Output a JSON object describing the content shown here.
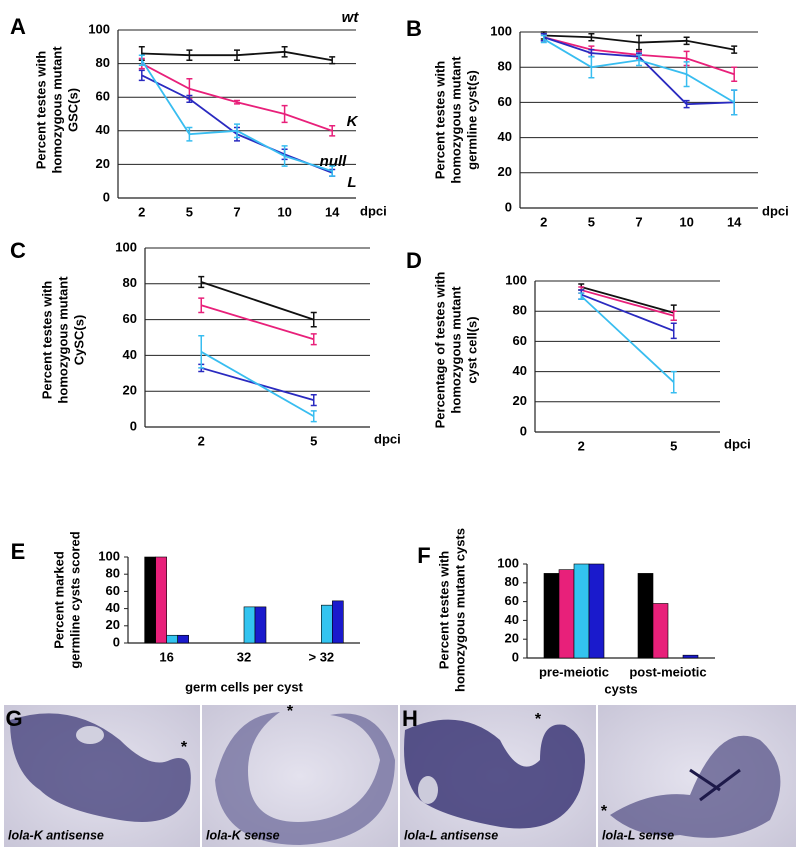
{
  "chart_data": [
    {
      "type": "line",
      "panel": "A",
      "ylabel": [
        "Percent testes with",
        "homozygous mutant",
        "GSC(s)"
      ],
      "xlabel": "dpci",
      "categories": [
        "2",
        "5",
        "7",
        "10",
        "14"
      ],
      "ylim": [
        0,
        100
      ],
      "yticks": [
        0,
        20,
        40,
        60,
        80,
        100
      ],
      "grid": true,
      "series": [
        {
          "name": "wt",
          "color": "#111111",
          "values": [
            86,
            85,
            85,
            87,
            82
          ],
          "errors": [
            4,
            3,
            3,
            3,
            2
          ]
        },
        {
          "name": "K",
          "color": "#e8207a",
          "values": [
            80,
            65,
            57,
            50,
            40
          ],
          "errors": [
            3,
            6,
            1,
            5,
            3
          ]
        },
        {
          "name": "null",
          "color": "#2a2ac0",
          "values": [
            73,
            59,
            38,
            26,
            15
          ],
          "errors": [
            3,
            2,
            4,
            3,
            2
          ]
        },
        {
          "name": "L",
          "color": "#38bdf0",
          "values": [
            82,
            38,
            40,
            25,
            16
          ],
          "errors": [
            3,
            4,
            4,
            6,
            3
          ]
        }
      ]
    },
    {
      "type": "line",
      "panel": "B",
      "ylabel": [
        "Percent testes with",
        "homozygous mutant",
        "germline cyst(s)"
      ],
      "xlabel": "dpci",
      "categories": [
        "2",
        "5",
        "7",
        "10",
        "14"
      ],
      "ylim": [
        0,
        100
      ],
      "yticks": [
        0,
        20,
        40,
        60,
        80,
        100
      ],
      "grid": true,
      "series": [
        {
          "color": "#111111",
          "values": [
            98,
            97,
            94,
            95,
            90
          ],
          "errors": [
            2,
            2,
            4,
            2,
            2
          ]
        },
        {
          "color": "#e8207a",
          "values": [
            97,
            90,
            87,
            85,
            76
          ],
          "errors": [
            2,
            2,
            2,
            4,
            4
          ]
        },
        {
          "color": "#2a2ac0",
          "values": [
            97,
            88,
            86,
            59,
            60
          ],
          "errors": [
            2,
            2,
            2,
            2,
            7
          ]
        },
        {
          "color": "#38bdf0",
          "values": [
            96,
            80,
            84,
            76,
            60
          ],
          "errors": [
            2,
            6,
            3,
            7,
            7
          ]
        }
      ]
    },
    {
      "type": "line",
      "panel": "C",
      "ylabel": [
        "Percent testes with",
        "homozygous mutant",
        "CySC(s)"
      ],
      "xlabel": "dpci",
      "categories": [
        "2",
        "5"
      ],
      "ylim": [
        0,
        100
      ],
      "yticks": [
        0,
        20,
        40,
        60,
        80,
        100
      ],
      "grid": true,
      "series": [
        {
          "color": "#111111",
          "values": [
            81,
            60
          ],
          "errors": [
            3,
            4
          ]
        },
        {
          "color": "#e8207a",
          "values": [
            68,
            49
          ],
          "errors": [
            4,
            3
          ]
        },
        {
          "color": "#2a2ac0",
          "values": [
            33,
            15
          ],
          "errors": [
            2,
            3
          ]
        },
        {
          "color": "#38bdf0",
          "values": [
            42,
            6
          ],
          "errors": [
            9,
            3
          ]
        }
      ]
    },
    {
      "type": "line",
      "panel": "D",
      "ylabel": [
        "Percentage of testes with",
        "homozygous mutant",
        "cyst cell(s)"
      ],
      "xlabel": "dpci",
      "categories": [
        "2",
        "5"
      ],
      "ylim": [
        0,
        100
      ],
      "yticks": [
        0,
        20,
        40,
        60,
        80,
        100
      ],
      "grid": true,
      "series": [
        {
          "color": "#111111",
          "values": [
            96,
            79
          ],
          "errors": [
            2,
            5
          ]
        },
        {
          "color": "#e8207a",
          "values": [
            94,
            77
          ],
          "errors": [
            2,
            3
          ]
        },
        {
          "color": "#2a2ac0",
          "values": [
            91,
            67
          ],
          "errors": [
            3,
            5
          ]
        },
        {
          "color": "#38bdf0",
          "values": [
            90,
            33
          ],
          "errors": [
            2,
            7
          ]
        }
      ]
    },
    {
      "type": "bar",
      "panel": "E",
      "ylabel": [
        "Percent marked",
        "germline cysts scored"
      ],
      "xlabel": "germ cells per cyst",
      "categories": [
        "16",
        "32",
        "> 32"
      ],
      "ylim": [
        0,
        100
      ],
      "yticks": [
        0,
        20,
        40,
        60,
        80,
        100
      ],
      "grid": false,
      "series": [
        {
          "color": "#000000",
          "values": [
            100,
            0,
            0
          ]
        },
        {
          "color": "#e8207a",
          "values": [
            100,
            0,
            0
          ]
        },
        {
          "color": "#33c4f0",
          "values": [
            9,
            42,
            44
          ]
        },
        {
          "color": "#1a1acc",
          "values": [
            9,
            42,
            49
          ]
        }
      ]
    },
    {
      "type": "bar",
      "panel": "F",
      "ylabel": [
        "Percent testes with",
        "homozygous mutant cysts"
      ],
      "xlabel": "cysts",
      "categories": [
        "pre-meiotic",
        "post-meiotic"
      ],
      "ylim": [
        0,
        100
      ],
      "yticks": [
        0,
        20,
        40,
        60,
        80,
        100
      ],
      "grid": false,
      "series": [
        {
          "color": "#000000",
          "values": [
            90,
            90
          ]
        },
        {
          "color": "#e8207a",
          "values": [
            94,
            58
          ]
        },
        {
          "color": "#33c4f0",
          "values": [
            100,
            0
          ]
        },
        {
          "color": "#1a1acc",
          "values": [
            100,
            3
          ]
        }
      ]
    }
  ],
  "images": {
    "panels": [
      "G",
      "H"
    ],
    "photos": [
      {
        "caption": "lola-K antisense",
        "marker": "*"
      },
      {
        "caption": "lola-K sense",
        "marker": "*"
      },
      {
        "caption": "lola-L antisense",
        "marker": "*"
      },
      {
        "caption": "lola-L sense",
        "marker": "*"
      }
    ]
  }
}
